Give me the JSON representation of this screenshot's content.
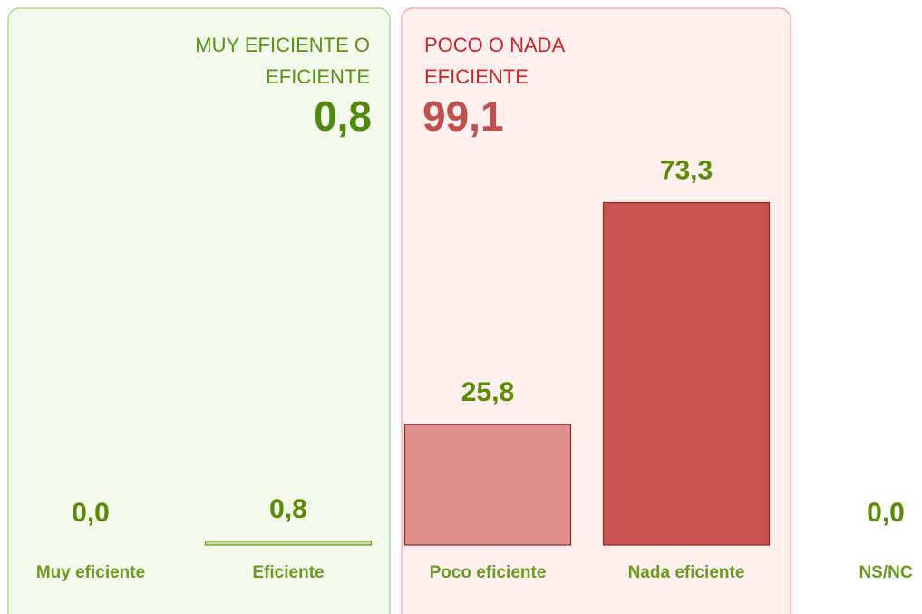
{
  "chart_data": {
    "type": "bar",
    "categories": [
      "Muy eficiente",
      "Eficiente",
      "Poco eficiente",
      "Nada eficiente",
      "NS/NC"
    ],
    "values": [
      0.0,
      0.8,
      25.8,
      73.3,
      0.0
    ],
    "value_labels": [
      "0,0",
      "0,8",
      "25,8",
      "73,3",
      "0,0"
    ],
    "colors": [
      "#c5e1a5",
      "#c5e1a5",
      "#de9190",
      "#c9514f",
      "#c5e1a5"
    ],
    "groups": [
      {
        "label": "MUY EFICIENTE O EFICIENTE",
        "total": 0.8,
        "total_label": "0,8"
      },
      {
        "label": "POCO O NADA EFICIENTE",
        "total": 99.1,
        "total_label": "99,1"
      }
    ]
  }
}
